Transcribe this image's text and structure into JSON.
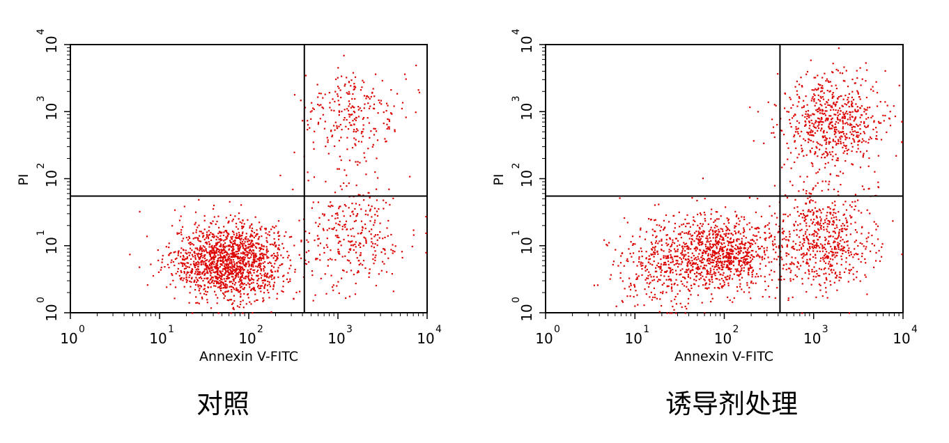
{
  "chart_data": [
    {
      "type": "scatter",
      "caption": "对照",
      "xlabel": "Annexin V-FITC",
      "ylabel": "PI",
      "x_scale": "log",
      "y_scale": "log",
      "xlim": [
        1,
        10000
      ],
      "ylim": [
        1,
        10000
      ],
      "xticks": [
        {
          "base": "10",
          "exp": "0"
        },
        {
          "base": "10",
          "exp": "1"
        },
        {
          "base": "10",
          "exp": "2"
        },
        {
          "base": "10",
          "exp": "3"
        },
        {
          "base": "10",
          "exp": "4"
        }
      ],
      "yticks": [
        {
          "base": "10",
          "exp": "0"
        },
        {
          "base": "10",
          "exp": "1"
        },
        {
          "base": "10",
          "exp": "2"
        },
        {
          "base": "10",
          "exp": "3"
        },
        {
          "base": "10",
          "exp": "4"
        }
      ],
      "quadrant_gate": {
        "x": 420,
        "y": 55
      },
      "point_color": "#dd0000",
      "clusters": [
        {
          "x": 60,
          "y": 6,
          "count": 1500
        },
        {
          "x": 1500,
          "y": 900,
          "count": 260
        },
        {
          "x": 1400,
          "y": 15,
          "count": 300
        }
      ]
    },
    {
      "type": "scatter",
      "caption": "诱导剂处理",
      "xlabel": "Annexin V-FITC",
      "ylabel": "PI",
      "x_scale": "log",
      "y_scale": "log",
      "xlim": [
        1,
        10000
      ],
      "ylim": [
        1,
        10000
      ],
      "xticks": [
        {
          "base": "10",
          "exp": "0"
        },
        {
          "base": "10",
          "exp": "1"
        },
        {
          "base": "10",
          "exp": "2"
        },
        {
          "base": "10",
          "exp": "3"
        },
        {
          "base": "10",
          "exp": "4"
        }
      ],
      "yticks": [
        {
          "base": "10",
          "exp": "0"
        },
        {
          "base": "10",
          "exp": "1"
        },
        {
          "base": "10",
          "exp": "2"
        },
        {
          "base": "10",
          "exp": "3"
        },
        {
          "base": "10",
          "exp": "4"
        }
      ],
      "quadrant_gate": {
        "x": 420,
        "y": 55
      },
      "point_color": "#dd0000",
      "clusters": [
        {
          "x": 90,
          "y": 8,
          "count": 900
        },
        {
          "x": 1600,
          "y": 700,
          "count": 650
        },
        {
          "x": 1300,
          "y": 12,
          "count": 600
        },
        {
          "x": 20,
          "y": 5,
          "count": 350
        }
      ]
    }
  ]
}
